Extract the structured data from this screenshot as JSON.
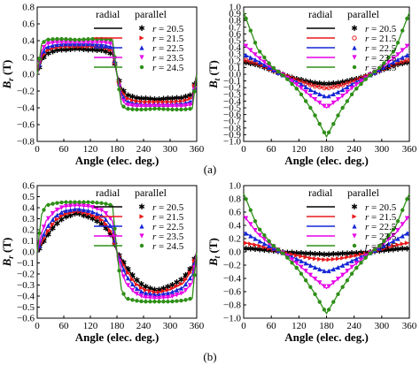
{
  "colors": [
    "#000000",
    "#e8191b",
    "#1526d6",
    "#e600e6",
    "#2e8f17"
  ],
  "panel_labels": [
    "(a)",
    "(b)"
  ],
  "chart_data": [
    {
      "id": "a-left",
      "type": "line",
      "component": "radial",
      "xlabel": "Angle (elec. deg.)",
      "ylabel_symbol": "B",
      "ylabel_sub": "r",
      "ylabel_unit": " (T)",
      "xlim": [
        0,
        360
      ],
      "ylim": [
        -0.8,
        0.8
      ],
      "xticks": [
        0,
        60,
        120,
        180,
        240,
        300,
        360
      ],
      "yticks": [
        -0.8,
        -0.6,
        -0.4,
        -0.2,
        0.0,
        0.2,
        0.4,
        0.6,
        0.8
      ],
      "ytick_labels": [
        "−0.8",
        "−0.6",
        "−0.4",
        "−0.2",
        "0.0",
        "0.2",
        "0.4",
        "0.6",
        "0.8"
      ],
      "legend": {
        "col1": "radial",
        "col2": "parallel",
        "placement": "top-right"
      },
      "series": [
        {
          "name": "r = 20.5",
          "r": "20.5",
          "marker": "star",
          "shape": "square-wave",
          "x": [
            0,
            10,
            20,
            40,
            60,
            90,
            120,
            150,
            170,
            180
          ],
          "values": [
            0.0,
            0.16,
            0.24,
            0.28,
            0.29,
            0.3,
            0.29,
            0.28,
            0.24,
            0.0
          ]
        },
        {
          "name": "r = 21.5",
          "r": "21.5",
          "marker": "tri-right",
          "shape": "square-wave",
          "x": [
            0,
            10,
            20,
            40,
            60,
            90,
            120,
            150,
            170,
            180
          ],
          "values": [
            0.0,
            0.19,
            0.28,
            0.32,
            0.33,
            0.33,
            0.33,
            0.32,
            0.28,
            0.0
          ]
        },
        {
          "name": "r = 22.5",
          "r": "22.5",
          "marker": "tri-up",
          "shape": "square-wave",
          "x": [
            0,
            10,
            20,
            40,
            60,
            90,
            120,
            150,
            170,
            180
          ],
          "values": [
            0.0,
            0.23,
            0.32,
            0.35,
            0.36,
            0.36,
            0.36,
            0.35,
            0.32,
            0.0
          ]
        },
        {
          "name": "r = 23.5",
          "r": "23.5",
          "marker": "tri-down",
          "shape": "square-wave",
          "x": [
            0,
            10,
            20,
            40,
            60,
            90,
            120,
            150,
            170,
            180
          ],
          "values": [
            0.0,
            0.28,
            0.36,
            0.38,
            0.38,
            0.38,
            0.38,
            0.38,
            0.36,
            0.0
          ]
        },
        {
          "name": "r = 24.5",
          "r": "24.5",
          "marker": "circle",
          "shape": "square-wave",
          "x": [
            0,
            10,
            20,
            40,
            60,
            90,
            120,
            150,
            170,
            180
          ],
          "values": [
            0.0,
            0.36,
            0.41,
            0.42,
            0.42,
            0.41,
            0.42,
            0.42,
            0.41,
            0.0
          ]
        }
      ]
    },
    {
      "id": "a-right",
      "type": "line",
      "component": "tangential",
      "xlabel": "Angle (elec. deg.)",
      "ylabel_symbol": "B",
      "ylabel_sub": "t",
      "ylabel_unit": " (T)",
      "xlim": [
        0,
        360
      ],
      "ylim": [
        -1.0,
        1.0
      ],
      "xticks": [
        0,
        60,
        120,
        180,
        240,
        300,
        360
      ],
      "yticks": [
        -1.0,
        -0.9,
        -0.8,
        -0.7,
        -0.6,
        -0.5,
        -0.4,
        -0.3,
        -0.2,
        -0.1,
        0.0,
        0.1,
        0.2,
        0.3,
        0.4,
        0.5,
        0.6,
        0.7,
        0.8,
        0.9,
        1.0
      ],
      "ytick_labels": [
        "−1.0",
        "−0.9",
        "−0.8",
        "−0.7",
        "−0.6",
        "−0.5",
        "−0.4",
        "−0.3",
        "−0.2",
        "−0.1",
        "0.0",
        "0.1",
        "0.2",
        "0.3",
        "0.4",
        "0.5",
        "0.6",
        "0.7",
        "0.8",
        "0.9",
        "1.0"
      ],
      "legend": {
        "col1": "radial",
        "col2": "parallel",
        "placement": "top-right"
      },
      "series": [
        {
          "name": "r = 20.5",
          "r": "20.5",
          "marker": "star",
          "shape": "cusp",
          "x": [
            0,
            30,
            60,
            90,
            120,
            150,
            180
          ],
          "values": [
            0.18,
            0.14,
            0.06,
            -0.02,
            -0.08,
            -0.13,
            -0.15
          ]
        },
        {
          "name": "r = 21.5",
          "r": "21.5",
          "marker": "circle-open",
          "shape": "cusp",
          "x": [
            0,
            30,
            60,
            90,
            120,
            150,
            180
          ],
          "values": [
            0.22,
            0.16,
            0.07,
            -0.02,
            -0.1,
            -0.17,
            -0.21
          ]
        },
        {
          "name": "r = 22.5",
          "r": "22.5",
          "marker": "tri-up",
          "shape": "cusp",
          "x": [
            0,
            30,
            60,
            90,
            120,
            150,
            180
          ],
          "values": [
            0.3,
            0.2,
            0.08,
            -0.03,
            -0.13,
            -0.25,
            -0.34
          ]
        },
        {
          "name": "r = 23.5",
          "r": "23.5",
          "marker": "tri-down",
          "shape": "cusp",
          "x": [
            0,
            30,
            60,
            90,
            120,
            150,
            180
          ],
          "values": [
            0.45,
            0.26,
            0.1,
            -0.03,
            -0.18,
            -0.35,
            -0.5
          ]
        },
        {
          "name": "r = 24.5",
          "r": "24.5",
          "marker": "circle",
          "shape": "cusp",
          "x": [
            0,
            30,
            60,
            90,
            120,
            150,
            180
          ],
          "values": [
            0.92,
            0.38,
            0.12,
            -0.04,
            -0.25,
            -0.55,
            -0.93
          ]
        }
      ]
    },
    {
      "id": "b-left",
      "type": "line",
      "component": "radial",
      "xlabel": "Angle (elec. deg.)",
      "ylabel_symbol": "B",
      "ylabel_sub": "r",
      "ylabel_unit": " (T)",
      "xlim": [
        0,
        360
      ],
      "ylim": [
        -0.6,
        0.6
      ],
      "xticks": [
        0,
        60,
        120,
        180,
        240,
        300,
        360
      ],
      "yticks": [
        -0.6,
        -0.5,
        -0.4,
        -0.3,
        -0.2,
        -0.1,
        0.0,
        0.1,
        0.2,
        0.3,
        0.4,
        0.5,
        0.6
      ],
      "ytick_labels": [
        "−0.6",
        "−0.5",
        "−0.4",
        "−0.3",
        "−0.2",
        "−0.1",
        "0.0",
        "0.1",
        "0.2",
        "0.3",
        "0.4",
        "0.5",
        "0.6"
      ],
      "legend": {
        "col1": "radial",
        "col2": "parallel",
        "placement": "top-right"
      },
      "series": [
        {
          "name": "r = 20.5",
          "r": "20.5",
          "marker": "star",
          "shape": "square-wave",
          "x": [
            0,
            10,
            20,
            40,
            60,
            90,
            120,
            150,
            170,
            180
          ],
          "values": [
            0.0,
            0.06,
            0.13,
            0.24,
            0.31,
            0.35,
            0.31,
            0.24,
            0.13,
            0.0
          ]
        },
        {
          "name": "r = 21.5",
          "r": "21.5",
          "marker": "tri-right",
          "shape": "square-wave",
          "x": [
            0,
            10,
            20,
            40,
            60,
            90,
            120,
            150,
            170,
            180
          ],
          "values": [
            0.0,
            0.08,
            0.16,
            0.28,
            0.34,
            0.37,
            0.34,
            0.28,
            0.16,
            0.0
          ]
        },
        {
          "name": "r = 22.5",
          "r": "22.5",
          "marker": "tri-up",
          "shape": "square-wave",
          "x": [
            0,
            10,
            20,
            40,
            60,
            90,
            120,
            150,
            170,
            180
          ],
          "values": [
            0.0,
            0.11,
            0.21,
            0.32,
            0.37,
            0.39,
            0.37,
            0.32,
            0.21,
            0.0
          ]
        },
        {
          "name": "r = 23.5",
          "r": "23.5",
          "marker": "tri-down",
          "shape": "square-wave",
          "x": [
            0,
            10,
            20,
            40,
            60,
            90,
            120,
            150,
            170,
            180
          ],
          "values": [
            0.0,
            0.17,
            0.28,
            0.37,
            0.41,
            0.42,
            0.41,
            0.37,
            0.28,
            0.0
          ]
        },
        {
          "name": "r = 24.5",
          "r": "24.5",
          "marker": "circle",
          "shape": "square-wave",
          "x": [
            0,
            10,
            20,
            40,
            60,
            90,
            120,
            150,
            170,
            180
          ],
          "values": [
            0.0,
            0.34,
            0.42,
            0.44,
            0.45,
            0.45,
            0.45,
            0.44,
            0.42,
            0.0
          ]
        }
      ]
    },
    {
      "id": "b-right",
      "type": "line",
      "component": "tangential",
      "xlabel": "Angle (elec. deg.)",
      "ylabel_symbol": "B",
      "ylabel_sub": "t",
      "ylabel_unit": " (T)",
      "xlim": [
        0,
        360
      ],
      "ylim": [
        -1.0,
        1.0
      ],
      "xticks": [
        0,
        60,
        120,
        180,
        240,
        300,
        360
      ],
      "yticks": [
        -1.0,
        -0.8,
        -0.6,
        -0.4,
        -0.2,
        0.0,
        0.2,
        0.4,
        0.6,
        0.8,
        1.0
      ],
      "ytick_labels": [
        "−1.0",
        "−0.8",
        "−0.6",
        "−0.4",
        "−0.2",
        "0.0",
        "0.2",
        "0.4",
        "0.6",
        "0.8",
        "1.0"
      ],
      "legend": {
        "col1": "radial",
        "col2": "parallel",
        "placement": "top-right"
      },
      "series": [
        {
          "name": "r = 20.5",
          "r": "20.5",
          "marker": "star",
          "shape": "cusp",
          "x": [
            0,
            30,
            60,
            90,
            120,
            150,
            180
          ],
          "values": [
            0.05,
            0.04,
            0.02,
            -0.01,
            -0.02,
            -0.03,
            -0.04
          ]
        },
        {
          "name": "r = 21.5",
          "r": "21.5",
          "marker": "tri-right",
          "shape": "cusp",
          "x": [
            0,
            30,
            60,
            90,
            120,
            150,
            180
          ],
          "values": [
            0.14,
            0.1,
            0.04,
            -0.02,
            -0.06,
            -0.1,
            -0.12
          ]
        },
        {
          "name": "r = 22.5",
          "r": "22.5",
          "marker": "tri-up",
          "shape": "cusp",
          "x": [
            0,
            30,
            60,
            90,
            120,
            150,
            180
          ],
          "values": [
            0.3,
            0.18,
            0.07,
            -0.03,
            -0.12,
            -0.22,
            -0.3
          ]
        },
        {
          "name": "r = 23.5",
          "r": "23.5",
          "marker": "tri-down",
          "shape": "cusp",
          "x": [
            0,
            30,
            60,
            90,
            120,
            150,
            180
          ],
          "values": [
            0.55,
            0.28,
            0.1,
            -0.04,
            -0.2,
            -0.38,
            -0.55
          ]
        },
        {
          "name": "r = 24.5",
          "r": "24.5",
          "marker": "circle",
          "shape": "cusp",
          "x": [
            0,
            30,
            60,
            90,
            120,
            150,
            180
          ],
          "values": [
            0.88,
            0.38,
            0.12,
            -0.05,
            -0.28,
            -0.58,
            -0.93
          ]
        }
      ]
    }
  ]
}
